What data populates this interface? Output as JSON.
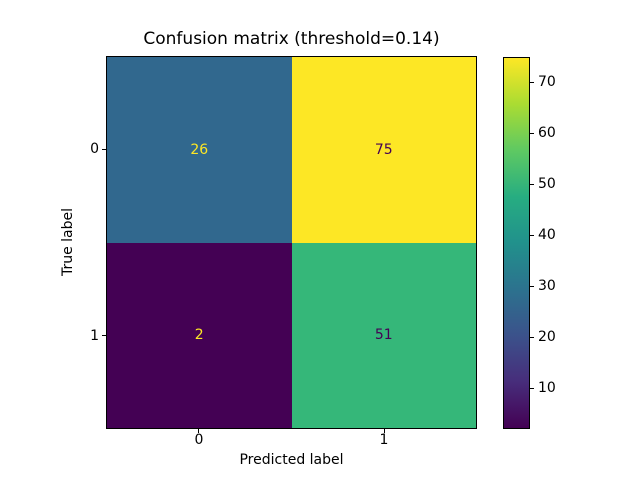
{
  "chart_data": {
    "type": "heatmap",
    "title": "Confusion matrix (threshold=0.14)",
    "xlabel": "Predicted label",
    "ylabel": "True label",
    "x_tick_labels": [
      "0",
      "1"
    ],
    "y_tick_labels": [
      "0",
      "1"
    ],
    "matrix": [
      [
        26,
        75
      ],
      [
        2,
        51
      ]
    ],
    "colormap": "viridis",
    "vmin": 2,
    "vmax": 75,
    "colorbar_ticks": [
      10,
      20,
      30,
      40,
      50,
      60,
      70
    ],
    "colorbar_position": "right",
    "grid": false
  },
  "cells": [
    {
      "row": "0",
      "col": "0",
      "value": "26",
      "bg": "#31688e",
      "fg": "#fde725"
    },
    {
      "row": "0",
      "col": "1",
      "value": "75",
      "bg": "#fde725",
      "fg": "#440154"
    },
    {
      "row": "1",
      "col": "0",
      "value": "2",
      "bg": "#440154",
      "fg": "#fde725"
    },
    {
      "row": "1",
      "col": "1",
      "value": "51",
      "bg": "#35b779",
      "fg": "#440154"
    }
  ],
  "colors": {
    "viridis_stops": [
      "#440154",
      "#472d7b",
      "#3b528b",
      "#2c728e",
      "#21918c",
      "#27ad81",
      "#5ec962",
      "#aadc32",
      "#fde725"
    ],
    "spine": "#000000",
    "text": "#000000",
    "background": "#ffffff"
  }
}
